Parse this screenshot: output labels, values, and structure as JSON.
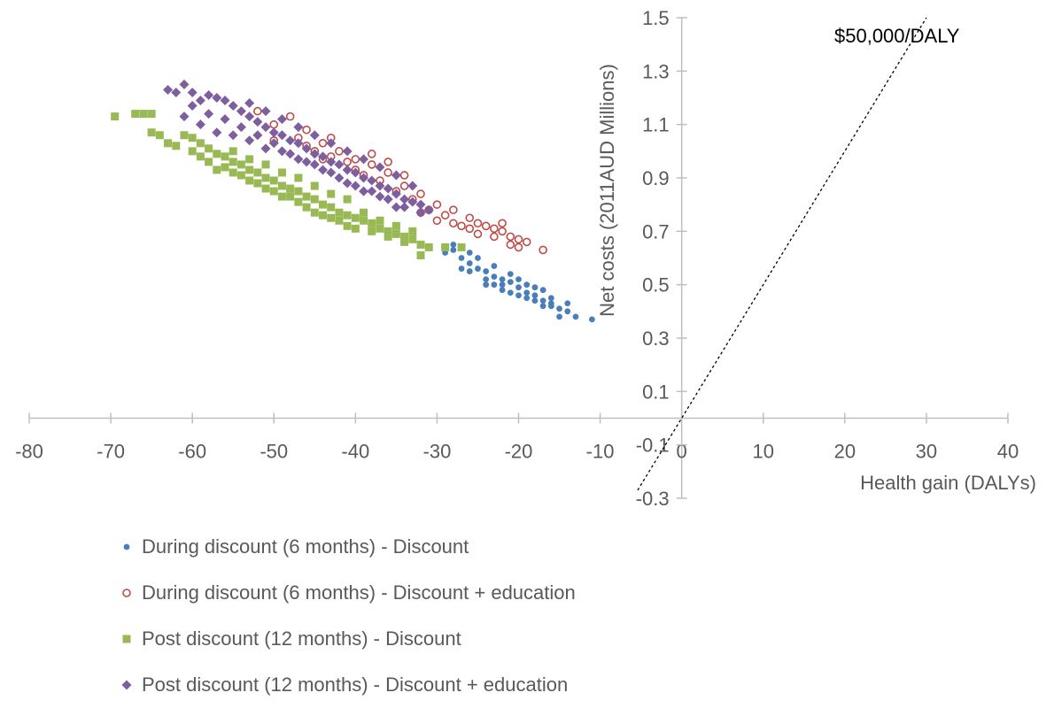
{
  "chart_data": {
    "type": "scatter",
    "title": "",
    "xlabel": "Health gain (DALYs)",
    "ylabel": "Net costs (2011AUD Millions)",
    "xlim": [
      -80,
      40
    ],
    "ylim": [
      -0.3,
      1.5
    ],
    "x_ticks": [
      "-80",
      "-70",
      "-60",
      "-50",
      "-40",
      "-30",
      "-20",
      "-10",
      "0",
      "10",
      "20",
      "30",
      "40"
    ],
    "y_ticks": [
      "1.5",
      "1.3",
      "1.1",
      "0.9",
      "0.7",
      "0.5",
      "0.3",
      "0.1",
      "-0.1",
      "-0.3"
    ],
    "threshold_line": {
      "label": "$50,000/DALY",
      "points": [
        [
          -5.4,
          -0.27
        ],
        [
          30,
          1.5
        ]
      ]
    },
    "grid": false,
    "legend_position": "bottom",
    "series": [
      {
        "name": "During discount (6 months) - Discount",
        "color": "#4a7ebb",
        "marker": "circle",
        "points": [
          [
            -28,
            0.63
          ],
          [
            -27,
            0.6
          ],
          [
            -26,
            0.58
          ],
          [
            -25,
            0.56
          ],
          [
            -24,
            0.55
          ],
          [
            -23,
            0.53
          ],
          [
            -22,
            0.52
          ],
          [
            -21,
            0.51
          ],
          [
            -20,
            0.49
          ],
          [
            -19,
            0.47
          ],
          [
            -18,
            0.46
          ],
          [
            -17,
            0.44
          ],
          [
            -16,
            0.42
          ],
          [
            -15,
            0.41
          ],
          [
            -14,
            0.4
          ],
          [
            -13,
            0.38
          ],
          [
            -11,
            0.37
          ],
          [
            -26,
            0.55
          ],
          [
            -24,
            0.52
          ],
          [
            -22,
            0.5
          ],
          [
            -20,
            0.46
          ],
          [
            -18,
            0.44
          ],
          [
            -16,
            0.45
          ],
          [
            -25,
            0.6
          ],
          [
            -23,
            0.57
          ],
          [
            -21,
            0.54
          ],
          [
            -19,
            0.5
          ],
          [
            -17,
            0.48
          ],
          [
            -28,
            0.65
          ],
          [
            -27,
            0.56
          ],
          [
            -24,
            0.5
          ],
          [
            -22,
            0.48
          ],
          [
            -20,
            0.52
          ],
          [
            -18,
            0.49
          ],
          [
            -16,
            0.43
          ],
          [
            -14,
            0.43
          ],
          [
            -29,
            0.62
          ],
          [
            -26,
            0.62
          ],
          [
            -23,
            0.5
          ],
          [
            -21,
            0.47
          ],
          [
            -19,
            0.45
          ],
          [
            -17,
            0.42
          ],
          [
            -15,
            0.38
          ]
        ]
      },
      {
        "name": "During discount (6 months) - Discount + education",
        "color": "#be4b48",
        "marker": "open-circle",
        "points": [
          [
            -48,
            1.13
          ],
          [
            -46,
            1.08
          ],
          [
            -44,
            1.03
          ],
          [
            -42,
            1.0
          ],
          [
            -40,
            0.97
          ],
          [
            -38,
            0.95
          ],
          [
            -36,
            0.92
          ],
          [
            -34,
            0.87
          ],
          [
            -32,
            0.84
          ],
          [
            -30,
            0.8
          ],
          [
            -28,
            0.78
          ],
          [
            -26,
            0.75
          ],
          [
            -25,
            0.73
          ],
          [
            -24,
            0.72
          ],
          [
            -23,
            0.71
          ],
          [
            -22,
            0.7
          ],
          [
            -21,
            0.68
          ],
          [
            -20,
            0.67
          ],
          [
            -19,
            0.66
          ],
          [
            -17,
            0.63
          ],
          [
            -47,
            1.05
          ],
          [
            -45,
            1.0
          ],
          [
            -43,
            0.98
          ],
          [
            -41,
            0.96
          ],
          [
            -39,
            0.91
          ],
          [
            -37,
            0.89
          ],
          [
            -35,
            0.85
          ],
          [
            -33,
            0.82
          ],
          [
            -31,
            0.78
          ],
          [
            -29,
            0.76
          ],
          [
            -27,
            0.72
          ],
          [
            -25,
            0.69
          ],
          [
            -23,
            0.68
          ],
          [
            -20,
            0.64
          ],
          [
            -52,
            1.15
          ],
          [
            -50,
            1.1
          ],
          [
            -43,
            1.05
          ],
          [
            -38,
            0.99
          ],
          [
            -36,
            0.96
          ],
          [
            -34,
            0.91
          ],
          [
            -30,
            0.74
          ],
          [
            -28,
            0.73
          ],
          [
            -26,
            0.71
          ],
          [
            -22,
            0.73
          ],
          [
            -21,
            0.65
          ],
          [
            -50,
            1.04
          ],
          [
            -46,
            1.02
          ],
          [
            -44,
            0.97
          ],
          [
            -40,
            0.93
          ],
          [
            -32,
            0.77
          ]
        ]
      },
      {
        "name": "Post discount (12 months) - Discount",
        "color": "#98b954",
        "marker": "square",
        "points": [
          [
            -69.5,
            1.13
          ],
          [
            -67,
            1.14
          ],
          [
            -66,
            1.14
          ],
          [
            -65,
            1.14
          ],
          [
            -65,
            1.07
          ],
          [
            -64,
            1.06
          ],
          [
            -63,
            1.03
          ],
          [
            -61,
            1.06
          ],
          [
            -60,
            1.05
          ],
          [
            -59,
            1.03
          ],
          [
            -58,
            1.01
          ],
          [
            -57,
            0.99
          ],
          [
            -56,
            0.98
          ],
          [
            -55,
            0.96
          ],
          [
            -54,
            0.95
          ],
          [
            -53,
            0.93
          ],
          [
            -52,
            0.92
          ],
          [
            -51,
            0.9
          ],
          [
            -50,
            0.89
          ],
          [
            -49,
            0.87
          ],
          [
            -48,
            0.86
          ],
          [
            -47,
            0.85
          ],
          [
            -46,
            0.83
          ],
          [
            -45,
            0.82
          ],
          [
            -44,
            0.8
          ],
          [
            -43,
            0.79
          ],
          [
            -42,
            0.77
          ],
          [
            -41,
            0.76
          ],
          [
            -40,
            0.75
          ],
          [
            -39,
            0.74
          ],
          [
            -38,
            0.73
          ],
          [
            -37,
            0.71
          ],
          [
            -36,
            0.7
          ],
          [
            -35,
            0.69
          ],
          [
            -34,
            0.68
          ],
          [
            -33,
            0.67
          ],
          [
            -32,
            0.65
          ],
          [
            -31,
            0.64
          ],
          [
            -29,
            0.64
          ],
          [
            -27,
            0.64
          ],
          [
            -60,
            1.0
          ],
          [
            -58,
            0.96
          ],
          [
            -56,
            0.94
          ],
          [
            -54,
            0.91
          ],
          [
            -52,
            0.88
          ],
          [
            -50,
            0.85
          ],
          [
            -48,
            0.83
          ],
          [
            -46,
            0.79
          ],
          [
            -44,
            0.76
          ],
          [
            -42,
            0.74
          ],
          [
            -40,
            0.71
          ],
          [
            -38,
            0.7
          ],
          [
            -36,
            0.68
          ],
          [
            -34,
            0.66
          ],
          [
            -32,
            0.61
          ],
          [
            -62,
            1.02
          ],
          [
            -59,
            0.98
          ],
          [
            -57,
            0.93
          ],
          [
            -55,
            0.92
          ],
          [
            -53,
            0.89
          ],
          [
            -51,
            0.86
          ],
          [
            -49,
            0.83
          ],
          [
            -47,
            0.81
          ],
          [
            -45,
            0.77
          ],
          [
            -43,
            0.75
          ],
          [
            -41,
            0.72
          ],
          [
            -39,
            0.77
          ],
          [
            -37,
            0.74
          ],
          [
            -35,
            0.72
          ],
          [
            -33,
            0.7
          ],
          [
            -55,
            1.0
          ],
          [
            -53,
            0.97
          ],
          [
            -51,
            0.95
          ],
          [
            -49,
            0.92
          ],
          [
            -47,
            0.9
          ],
          [
            -45,
            0.87
          ],
          [
            -43,
            0.84
          ],
          [
            -41,
            0.82
          ]
        ]
      },
      {
        "name": "Post discount (12 months) - Discount + education",
        "color": "#7d5fa0",
        "marker": "diamond",
        "points": [
          [
            -63,
            1.23
          ],
          [
            -62,
            1.22
          ],
          [
            -61,
            1.25
          ],
          [
            -60,
            1.22
          ],
          [
            -59,
            1.19
          ],
          [
            -58,
            1.21
          ],
          [
            -57,
            1.2
          ],
          [
            -56,
            1.19
          ],
          [
            -55,
            1.17
          ],
          [
            -54,
            1.15
          ],
          [
            -53,
            1.13
          ],
          [
            -52,
            1.11
          ],
          [
            -51,
            1.09
          ],
          [
            -50,
            1.07
          ],
          [
            -49,
            1.06
          ],
          [
            -48,
            1.04
          ],
          [
            -47,
            1.03
          ],
          [
            -46,
            1.01
          ],
          [
            -45,
            0.99
          ],
          [
            -44,
            0.98
          ],
          [
            -43,
            0.96
          ],
          [
            -42,
            0.95
          ],
          [
            -41,
            0.93
          ],
          [
            -40,
            0.92
          ],
          [
            -39,
            0.9
          ],
          [
            -38,
            0.89
          ],
          [
            -37,
            0.87
          ],
          [
            -36,
            0.86
          ],
          [
            -35,
            0.84
          ],
          [
            -34,
            0.82
          ],
          [
            -33,
            0.81
          ],
          [
            -32,
            0.8
          ],
          [
            -31,
            0.78
          ],
          [
            -60,
            1.17
          ],
          [
            -58,
            1.14
          ],
          [
            -56,
            1.12
          ],
          [
            -54,
            1.09
          ],
          [
            -52,
            1.06
          ],
          [
            -50,
            1.03
          ],
          [
            -48,
            0.99
          ],
          [
            -46,
            0.96
          ],
          [
            -44,
            0.93
          ],
          [
            -42,
            0.9
          ],
          [
            -40,
            0.87
          ],
          [
            -38,
            0.85
          ],
          [
            -36,
            0.82
          ],
          [
            -34,
            0.79
          ],
          [
            -32,
            0.77
          ],
          [
            -61,
            1.13
          ],
          [
            -59,
            1.1
          ],
          [
            -57,
            1.07
          ],
          [
            -55,
            1.06
          ],
          [
            -53,
            1.04
          ],
          [
            -51,
            1.01
          ],
          [
            -49,
            1.0
          ],
          [
            -47,
            0.97
          ],
          [
            -45,
            0.95
          ],
          [
            -43,
            0.92
          ],
          [
            -41,
            0.88
          ],
          [
            -39,
            0.85
          ],
          [
            -37,
            0.83
          ],
          [
            -35,
            0.79
          ],
          [
            -53,
            1.18
          ],
          [
            -51,
            1.15
          ],
          [
            -49,
            1.12
          ],
          [
            -47,
            1.09
          ],
          [
            -45,
            1.06
          ],
          [
            -43,
            1.03
          ],
          [
            -41,
            1.0
          ],
          [
            -39,
            0.97
          ],
          [
            -37,
            0.94
          ],
          [
            -35,
            0.91
          ],
          [
            -33,
            0.87
          ]
        ]
      }
    ]
  }
}
